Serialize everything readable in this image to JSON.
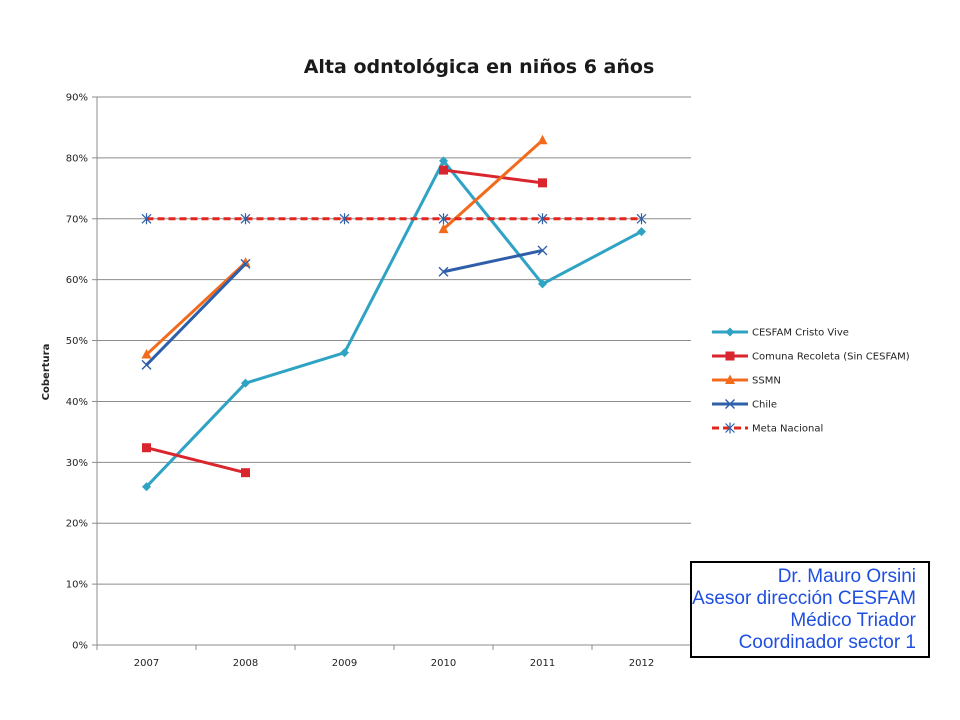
{
  "chart_data": {
    "type": "line",
    "title": "Alta odntológica en niños 6 años",
    "ylabel": "Cobertura",
    "xlabel": "",
    "categories": [
      "2007",
      "2008",
      "2009",
      "2010",
      "2011",
      "2012"
    ],
    "ylim": [
      0,
      90
    ],
    "yticks": [
      "0%",
      "10%",
      "20%",
      "30%",
      "40%",
      "50%",
      "60%",
      "70%",
      "80%",
      "90%"
    ],
    "grid": "horizontal",
    "legend_position": "right",
    "series": [
      {
        "name": "CESFAM Cristo Vive",
        "color": "#2ea3c4",
        "marker": "diamond",
        "dashed": false,
        "values": [
          26,
          43,
          48,
          79.5,
          59.3,
          67.9
        ]
      },
      {
        "name": "Comuna Recoleta (Sin CESFAM)",
        "color": "#d9262e",
        "marker": "square",
        "dashed": false,
        "values": [
          32.4,
          28.3,
          null,
          78,
          75.9,
          null
        ]
      },
      {
        "name": "SSMN",
        "color": "#f26b1d",
        "marker": "triangle",
        "dashed": false,
        "values": [
          47.7,
          62.8,
          null,
          68.3,
          82.9,
          null
        ]
      },
      {
        "name": "Chile",
        "color": "#2e5fa8",
        "marker": "x",
        "dashed": false,
        "values": [
          46,
          62.6,
          null,
          61.3,
          64.8,
          null
        ]
      },
      {
        "name": "Meta Nacional",
        "color": "#e3261e",
        "marker": "star",
        "dashed": true,
        "values": [
          70,
          70,
          70,
          70,
          70,
          70
        ]
      }
    ]
  },
  "signature": {
    "lines": [
      "Dr. Mauro Orsini",
      "Asesor dirección CESFAM",
      "Médico Triador ",
      "Coordinador sector 1"
    ],
    "color": "#1f4fe0"
  }
}
